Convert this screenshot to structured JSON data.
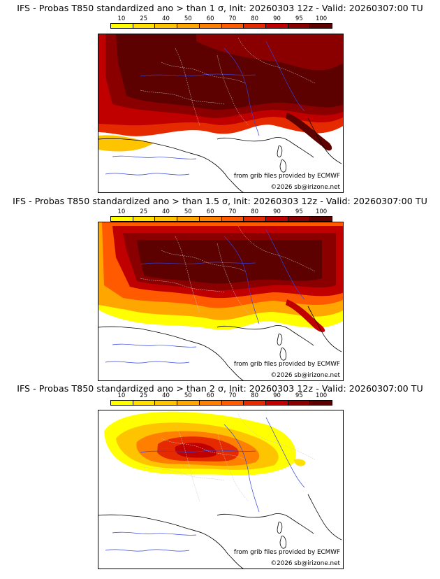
{
  "colorbar": {
    "labels": [
      "10",
      "25",
      "40",
      "50",
      "60",
      "70",
      "80",
      "90",
      "95",
      "100"
    ],
    "colors": [
      "#ffff00",
      "#ffe000",
      "#ffc400",
      "#ffa600",
      "#ff8000",
      "#ff5a00",
      "#e62a00",
      "#c00000",
      "#8a0000",
      "#5c0000"
    ]
  },
  "credits": {
    "source": "from grib files provided by ECMWF",
    "copyright": "©2026 sb@irizone.net"
  },
  "panels": [
    {
      "title": "IFS - Probas T850  standardized ano > than 1 σ, Init: 20260303 12z - Valid: 20260307:00 TU",
      "level": 1
    },
    {
      "title": "IFS - Probas T850  standardized ano > than 1.5 σ, Init: 20260303 12z - Valid: 20260307:00 TU",
      "level": 2
    },
    {
      "title": "IFS - Probas T850  standardized ano > than 2 σ, Init: 20260303 12z - Valid: 20260307:00 TU",
      "level": 3
    }
  ]
}
